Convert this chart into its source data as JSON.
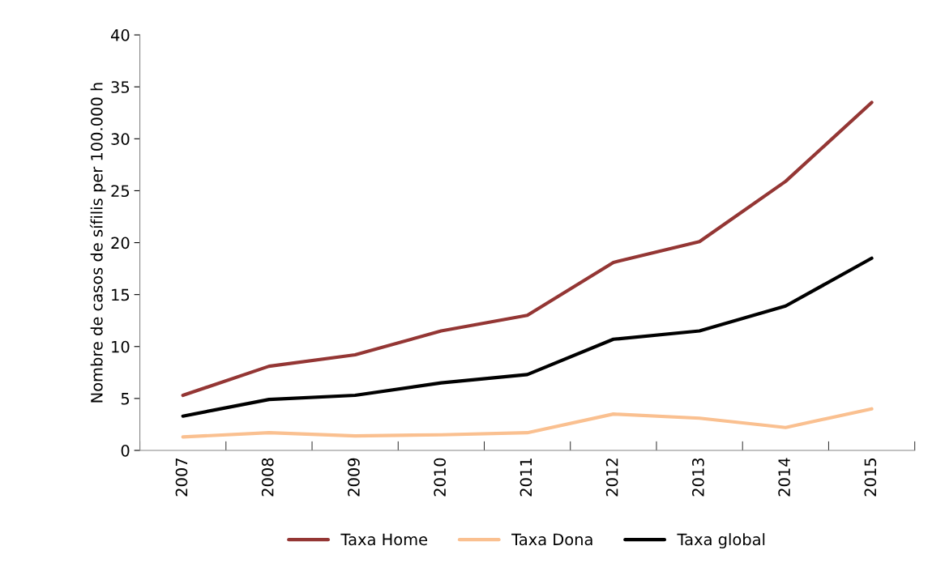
{
  "chart_data": {
    "type": "line",
    "ylabel": "Nombre de casos de sífilis per 100.000 h",
    "categories": [
      "2007",
      "2008",
      "2009",
      "2010",
      "2011",
      "2012",
      "2013",
      "2014",
      "2015"
    ],
    "series": [
      {
        "name": "Taxa Home",
        "color": "#943634",
        "values": [
          5.3,
          8.1,
          9.2,
          11.5,
          13.0,
          18.1,
          20.1,
          25.9,
          33.5
        ]
      },
      {
        "name": "Taxa Dona",
        "color": "#fac090",
        "values": [
          1.3,
          1.7,
          1.4,
          1.5,
          1.7,
          3.5,
          3.1,
          2.2,
          4.0
        ]
      },
      {
        "name": "Taxa global",
        "color": "#000000",
        "values": [
          3.3,
          4.9,
          5.3,
          6.5,
          7.3,
          10.7,
          11.5,
          13.9,
          18.5
        ]
      }
    ],
    "ylim": [
      0,
      40
    ],
    "yticks": [
      0,
      5,
      10,
      15,
      20,
      25,
      30,
      35,
      40
    ],
    "grid": false,
    "legend": "bottom",
    "marker": "none",
    "line_style": "solid"
  }
}
